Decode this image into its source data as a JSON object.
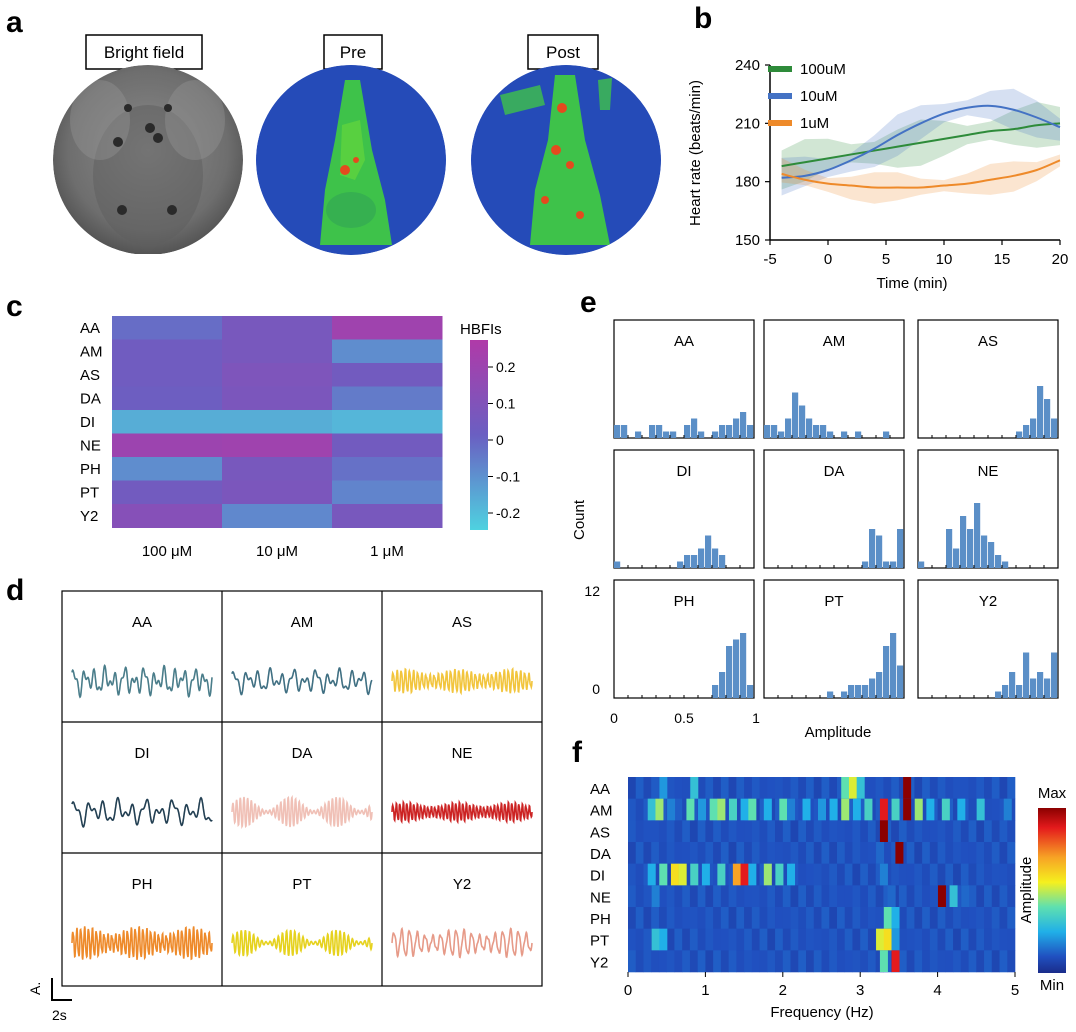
{
  "panel_letters": {
    "a": "a",
    "b": "b",
    "c": "c",
    "d": "d",
    "e": "e",
    "f": "f"
  },
  "panel_a": {
    "labels": [
      "Bright field",
      "Pre",
      "Post"
    ]
  },
  "chart_data": [
    {
      "panel": "b",
      "type": "line",
      "xlabel": "Time (min)",
      "ylabel": "Heart rate (beats/min)",
      "xlim": [
        -5,
        20
      ],
      "ylim": [
        150,
        240
      ],
      "xticks": [
        -5,
        0,
        5,
        10,
        15,
        20
      ],
      "yticks": [
        150,
        180,
        210,
        240
      ],
      "legend": "top-left",
      "x": [
        -4,
        -2,
        0,
        2,
        4,
        6,
        8,
        10,
        12,
        14,
        16,
        18,
        20
      ],
      "series": [
        {
          "name": "100uM",
          "color": "#2e8b3a",
          "values": [
            188,
            190,
            192,
            194,
            196,
            198,
            200,
            202,
            204,
            206,
            207,
            209,
            210
          ],
          "band": 10
        },
        {
          "name": "10uM",
          "color": "#4472c4",
          "values": [
            182,
            183,
            186,
            191,
            197,
            204,
            210,
            215,
            218,
            219,
            217,
            213,
            208
          ],
          "band": 9
        },
        {
          "name": "1uM",
          "color": "#ee8a2a",
          "values": [
            184,
            181,
            179,
            178,
            177,
            177,
            177,
            178,
            179,
            181,
            183,
            186,
            191
          ],
          "band": 7
        }
      ]
    },
    {
      "panel": "c",
      "type": "heatmap",
      "rows": [
        "AA",
        "AM",
        "AS",
        "DA",
        "DI",
        "NE",
        "PH",
        "PT",
        "Y2"
      ],
      "columns": [
        "100 μM",
        "10 μM",
        "1 μM"
      ],
      "values": [
        [
          -0.03,
          0.05,
          0.19
        ],
        [
          0.02,
          0.05,
          -0.1
        ],
        [
          0.02,
          0.07,
          0.03
        ],
        [
          0.01,
          0.06,
          -0.06
        ],
        [
          -0.17,
          -0.17,
          -0.19
        ],
        [
          0.18,
          0.19,
          0.03
        ],
        [
          -0.1,
          0.05,
          -0.04
        ],
        [
          0.03,
          0.06,
          -0.08
        ],
        [
          0.1,
          -0.09,
          0.05
        ]
      ],
      "colorbar_title": "HBFIs",
      "colorbar_ticks": [
        "0.2",
        "0.1",
        "0",
        "-0.1",
        "-0.2"
      ],
      "range": [
        -0.25,
        0.25
      ]
    },
    {
      "panel": "e",
      "type": "bar",
      "xlabel": "Amplitude",
      "ylabel": "Count",
      "xticks": [
        "0",
        "0.5",
        "1"
      ],
      "yticks": [
        "0",
        "12"
      ],
      "ylim": [
        0,
        12
      ],
      "bin_width": 0.05,
      "color": "#5b8fc7",
      "histograms": [
        {
          "name": "AA",
          "values": [
            2,
            2,
            0,
            1,
            0,
            2,
            2,
            1,
            1,
            0,
            2,
            3,
            1,
            0,
            1,
            2,
            2,
            3,
            4,
            2,
            1,
            0
          ]
        },
        {
          "name": "AM",
          "values": [
            2,
            2,
            1,
            3,
            7,
            5,
            3,
            2,
            2,
            1,
            0,
            1,
            0,
            1,
            0,
            0,
            0,
            1,
            0,
            0,
            0,
            0
          ]
        },
        {
          "name": "AS",
          "values": [
            0,
            0,
            0,
            0,
            0,
            0,
            0,
            0,
            0,
            0,
            0,
            0,
            0,
            0,
            1,
            2,
            3,
            8,
            6,
            3,
            1,
            0,
            1
          ]
        },
        {
          "name": "DI",
          "values": [
            1,
            0,
            0,
            0,
            0,
            0,
            0,
            0,
            0,
            1,
            2,
            2,
            3,
            5,
            3,
            2,
            0,
            0,
            0,
            0,
            0,
            0
          ]
        },
        {
          "name": "DA",
          "values": [
            0,
            0,
            0,
            0,
            0,
            0,
            0,
            0,
            0,
            0,
            0,
            0,
            0,
            0,
            1,
            6,
            5,
            1,
            1,
            6,
            5,
            5,
            10,
            1,
            0
          ]
        },
        {
          "name": "NE",
          "values": [
            1,
            0,
            0,
            0,
            6,
            3,
            8,
            6,
            10,
            5,
            4,
            2,
            1,
            0,
            0,
            0,
            0,
            0,
            0,
            0,
            0,
            0
          ]
        },
        {
          "name": "PH",
          "values": [
            0,
            0,
            0,
            0,
            0,
            0,
            0,
            0,
            0,
            0,
            0,
            0,
            0,
            0,
            2,
            4,
            8,
            9,
            10,
            2,
            0
          ]
        },
        {
          "name": "PT",
          "values": [
            0,
            0,
            0,
            0,
            0,
            0,
            0,
            0,
            0,
            1,
            0,
            1,
            2,
            2,
            2,
            3,
            4,
            8,
            10,
            5,
            4,
            2
          ]
        },
        {
          "name": "Y2",
          "values": [
            0,
            0,
            0,
            0,
            0,
            0,
            0,
            0,
            0,
            0,
            0,
            1,
            2,
            4,
            2,
            7,
            3,
            4,
            3,
            7,
            4,
            3,
            2,
            2
          ]
        }
      ]
    },
    {
      "panel": "f",
      "type": "heatmap",
      "xlabel": "Frequency (Hz)",
      "ylabel": "Amplitude",
      "xlim": [
        0,
        5
      ],
      "xticks": [
        0,
        1,
        2,
        3,
        4,
        5
      ],
      "rows": [
        "AA",
        "AM",
        "AS",
        "DA",
        "DI",
        "NE",
        "PH",
        "PT",
        "Y2"
      ],
      "colorbar_max": "Max",
      "colorbar_min": "Min",
      "peaks": [
        {
          "row": 0,
          "cells": [
            [
              0.45,
              0.4
            ],
            [
              0.85,
              0.5
            ],
            [
              2.8,
              0.6
            ],
            [
              2.9,
              0.7
            ],
            [
              3.0,
              0.5
            ],
            [
              3.6,
              1.0
            ]
          ]
        },
        {
          "row": 1,
          "cells": [
            [
              0.3,
              0.5
            ],
            [
              0.4,
              0.65
            ],
            [
              0.55,
              0.35
            ],
            [
              0.8,
              0.6
            ],
            [
              0.95,
              0.4
            ],
            [
              1.1,
              0.6
            ],
            [
              1.2,
              0.65
            ],
            [
              1.35,
              0.55
            ],
            [
              1.5,
              0.45
            ],
            [
              1.6,
              0.6
            ],
            [
              1.8,
              0.45
            ],
            [
              2.0,
              0.6
            ],
            [
              2.1,
              0.35
            ],
            [
              2.3,
              0.45
            ],
            [
              2.5,
              0.4
            ],
            [
              2.65,
              0.45
            ],
            [
              2.8,
              0.65
            ],
            [
              2.95,
              0.45
            ],
            [
              3.1,
              0.55
            ],
            [
              3.3,
              0.95
            ],
            [
              3.45,
              0.55
            ],
            [
              3.6,
              1.0
            ],
            [
              3.75,
              0.65
            ],
            [
              3.9,
              0.45
            ],
            [
              4.1,
              0.55
            ],
            [
              4.3,
              0.45
            ],
            [
              4.55,
              0.5
            ],
            [
              4.9,
              0.35
            ]
          ]
        },
        {
          "row": 2,
          "cells": [
            [
              3.3,
              1.0
            ]
          ]
        },
        {
          "row": 3,
          "cells": [
            [
              3.25,
              0.3
            ],
            [
              3.5,
              1.0
            ]
          ]
        },
        {
          "row": 4,
          "cells": [
            [
              0.3,
              0.45
            ],
            [
              0.45,
              0.6
            ],
            [
              0.6,
              0.75
            ],
            [
              0.7,
              0.7
            ],
            [
              0.85,
              0.55
            ],
            [
              1.0,
              0.45
            ],
            [
              1.2,
              0.55
            ],
            [
              1.4,
              0.85
            ],
            [
              1.5,
              0.95
            ],
            [
              1.6,
              0.45
            ],
            [
              1.8,
              0.65
            ],
            [
              1.95,
              0.55
            ],
            [
              2.1,
              0.45
            ],
            [
              3.3,
              0.35
            ]
          ]
        },
        {
          "row": 5,
          "cells": [
            [
              0.35,
              0.35
            ],
            [
              3.4,
              0.3
            ],
            [
              4.05,
              1.0
            ],
            [
              4.2,
              0.5
            ],
            [
              4.35,
              0.3
            ]
          ]
        },
        {
          "row": 6,
          "cells": [
            [
              3.35,
              0.6
            ],
            [
              3.45,
              0.45
            ]
          ]
        },
        {
          "row": 7,
          "cells": [
            [
              0.35,
              0.5
            ],
            [
              0.45,
              0.45
            ],
            [
              3.25,
              0.7
            ],
            [
              3.35,
              0.75
            ],
            [
              3.45,
              0.4
            ]
          ]
        },
        {
          "row": 8,
          "cells": [
            [
              3.3,
              0.6
            ],
            [
              3.45,
              0.95
            ]
          ]
        }
      ]
    }
  ],
  "panel_d": {
    "scale_y": "A.",
    "scale_x": "2s",
    "traces": [
      {
        "name": "AA",
        "color": "#4a7d8a",
        "freq": 14,
        "amp": 13,
        "style": "irregular"
      },
      {
        "name": "AM",
        "color": "#3f6f82",
        "freq": 12,
        "amp": 11,
        "style": "irregular"
      },
      {
        "name": "AS",
        "color": "#f2c53d",
        "freq": 34,
        "amp": 11,
        "style": "dense"
      },
      {
        "name": "DI",
        "color": "#223f52",
        "freq": 10,
        "amp": 12,
        "style": "irregular"
      },
      {
        "name": "DA",
        "color": "#f0c0b6",
        "freq": 38,
        "amp": 15,
        "style": "beating"
      },
      {
        "name": "NE",
        "color": "#cc2222",
        "freq": 40,
        "amp": 9,
        "style": "dense"
      },
      {
        "name": "PH",
        "color": "#ee8a2a",
        "freq": 36,
        "amp": 15,
        "style": "dense"
      },
      {
        "name": "PT",
        "color": "#e6d21e",
        "freq": 34,
        "amp": 13,
        "style": "beating"
      },
      {
        "name": "Y2",
        "color": "#e69a88",
        "freq": 18,
        "amp": 13,
        "style": "dense"
      }
    ]
  }
}
